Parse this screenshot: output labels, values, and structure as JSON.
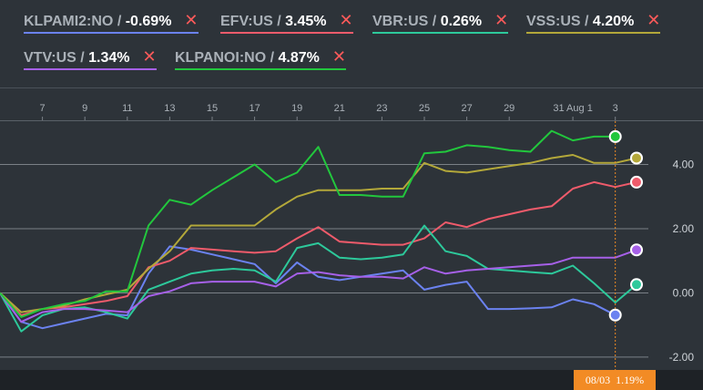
{
  "legend": [
    {
      "ticker": "KLPAMI2:NO",
      "sep": " / ",
      "value": "-0.69%",
      "color": "#6b82f0"
    },
    {
      "ticker": "EFV:US",
      "sep": " / ",
      "value": "3.45%",
      "color": "#ef5b6b"
    },
    {
      "ticker": "VBR:US",
      "sep": " / ",
      "value": "0.26%",
      "color": "#2dc99b"
    },
    {
      "ticker": "VSS:US",
      "sep": " / ",
      "value": "4.20%",
      "color": "#b3a83a"
    },
    {
      "ticker": "VTV:US",
      "sep": " / ",
      "value": "1.34%",
      "color": "#a660e8"
    },
    {
      "ticker": "KLPANOI:NO",
      "sep": " / ",
      "value": "4.87%",
      "color": "#22c73d"
    }
  ],
  "remove_icon": "close-icon",
  "badge": {
    "date": "08/03",
    "value": "1.19%"
  },
  "chart_data": {
    "type": "line",
    "x_tick_labels": [
      "7",
      "9",
      "11",
      "13",
      "15",
      "17",
      "19",
      "21",
      "23",
      "25",
      "27",
      "29",
      "31 Aug 1",
      "3"
    ],
    "y_ticks": [
      4.0,
      2.0,
      0.0,
      -2.0
    ],
    "y_tick_labels": [
      "4.00",
      "2.00",
      "0.00",
      "-2.00"
    ],
    "ylim": [
      -2.4,
      6.4
    ],
    "grid": true,
    "x": [
      0,
      1,
      2,
      3,
      4,
      5,
      6,
      7,
      8,
      9,
      10,
      11,
      12,
      13,
      14,
      15,
      16,
      17,
      18,
      19,
      20,
      21,
      22,
      23,
      24,
      25,
      26,
      27,
      28,
      29,
      30,
      31
    ],
    "crosshair_index": 29,
    "series": [
      {
        "name": "KLPAMI2:NO",
        "color": "#6b82f0",
        "values": [
          0,
          -0.9,
          -1.1,
          -0.95,
          -0.8,
          -0.65,
          -0.7,
          0.6,
          1.45,
          1.35,
          1.2,
          1.05,
          0.9,
          0.3,
          0.95,
          0.5,
          0.4,
          0.5,
          0.6,
          0.7,
          0.1,
          0.25,
          0.35,
          -0.5,
          -0.5,
          -0.48,
          -0.45,
          -0.2,
          -0.35,
          -0.69,
          null,
          null
        ]
      },
      {
        "name": "EFV:US",
        "color": "#ef5b6b",
        "values": [
          0,
          -0.7,
          -0.5,
          -0.45,
          -0.35,
          -0.25,
          -0.1,
          0.8,
          1.0,
          1.4,
          1.35,
          1.3,
          1.25,
          1.3,
          1.7,
          2.05,
          1.6,
          1.55,
          1.5,
          1.5,
          1.7,
          2.2,
          2.05,
          2.3,
          2.45,
          2.6,
          2.7,
          3.25,
          3.45,
          3.3,
          3.45,
          null
        ]
      },
      {
        "name": "VBR:US",
        "color": "#2dc99b",
        "values": [
          0,
          -1.2,
          -0.7,
          -0.5,
          -0.45,
          -0.6,
          -0.8,
          0.1,
          0.35,
          0.6,
          0.7,
          0.75,
          0.7,
          0.35,
          1.4,
          1.55,
          1.1,
          1.05,
          1.1,
          1.2,
          2.1,
          1.3,
          1.15,
          0.75,
          0.7,
          0.65,
          0.6,
          0.85,
          0.3,
          -0.3,
          0.26,
          null
        ]
      },
      {
        "name": "VSS:US",
        "color": "#b3a83a",
        "values": [
          0,
          -0.6,
          -0.5,
          -0.4,
          -0.2,
          -0.05,
          0.1,
          0.75,
          1.3,
          2.1,
          2.1,
          2.1,
          2.1,
          2.6,
          3.0,
          3.2,
          3.2,
          3.2,
          3.25,
          3.25,
          4.05,
          3.8,
          3.75,
          3.85,
          3.95,
          4.05,
          4.2,
          4.3,
          4.05,
          4.05,
          4.2,
          null
        ]
      },
      {
        "name": "VTV:US",
        "color": "#a660e8",
        "values": [
          0,
          -0.9,
          -0.6,
          -0.5,
          -0.5,
          -0.55,
          -0.6,
          -0.1,
          0.05,
          0.3,
          0.35,
          0.35,
          0.35,
          0.2,
          0.6,
          0.65,
          0.55,
          0.5,
          0.5,
          0.45,
          0.8,
          0.6,
          0.7,
          0.75,
          0.8,
          0.85,
          0.9,
          1.1,
          1.1,
          1.1,
          1.34,
          null
        ]
      },
      {
        "name": "KLPANOI:NO",
        "color": "#22c73d",
        "values": [
          0,
          -0.75,
          -0.5,
          -0.35,
          -0.25,
          0.05,
          0.05,
          2.1,
          2.9,
          2.75,
          3.2,
          3.6,
          4.0,
          3.45,
          3.75,
          4.55,
          3.05,
          3.05,
          3.0,
          3.0,
          4.35,
          4.4,
          4.6,
          4.55,
          4.45,
          4.4,
          5.05,
          4.75,
          4.87,
          4.87,
          null,
          null
        ]
      }
    ],
    "endpoint_index": [
      29,
      30,
      30,
      30,
      30,
      29
    ]
  }
}
